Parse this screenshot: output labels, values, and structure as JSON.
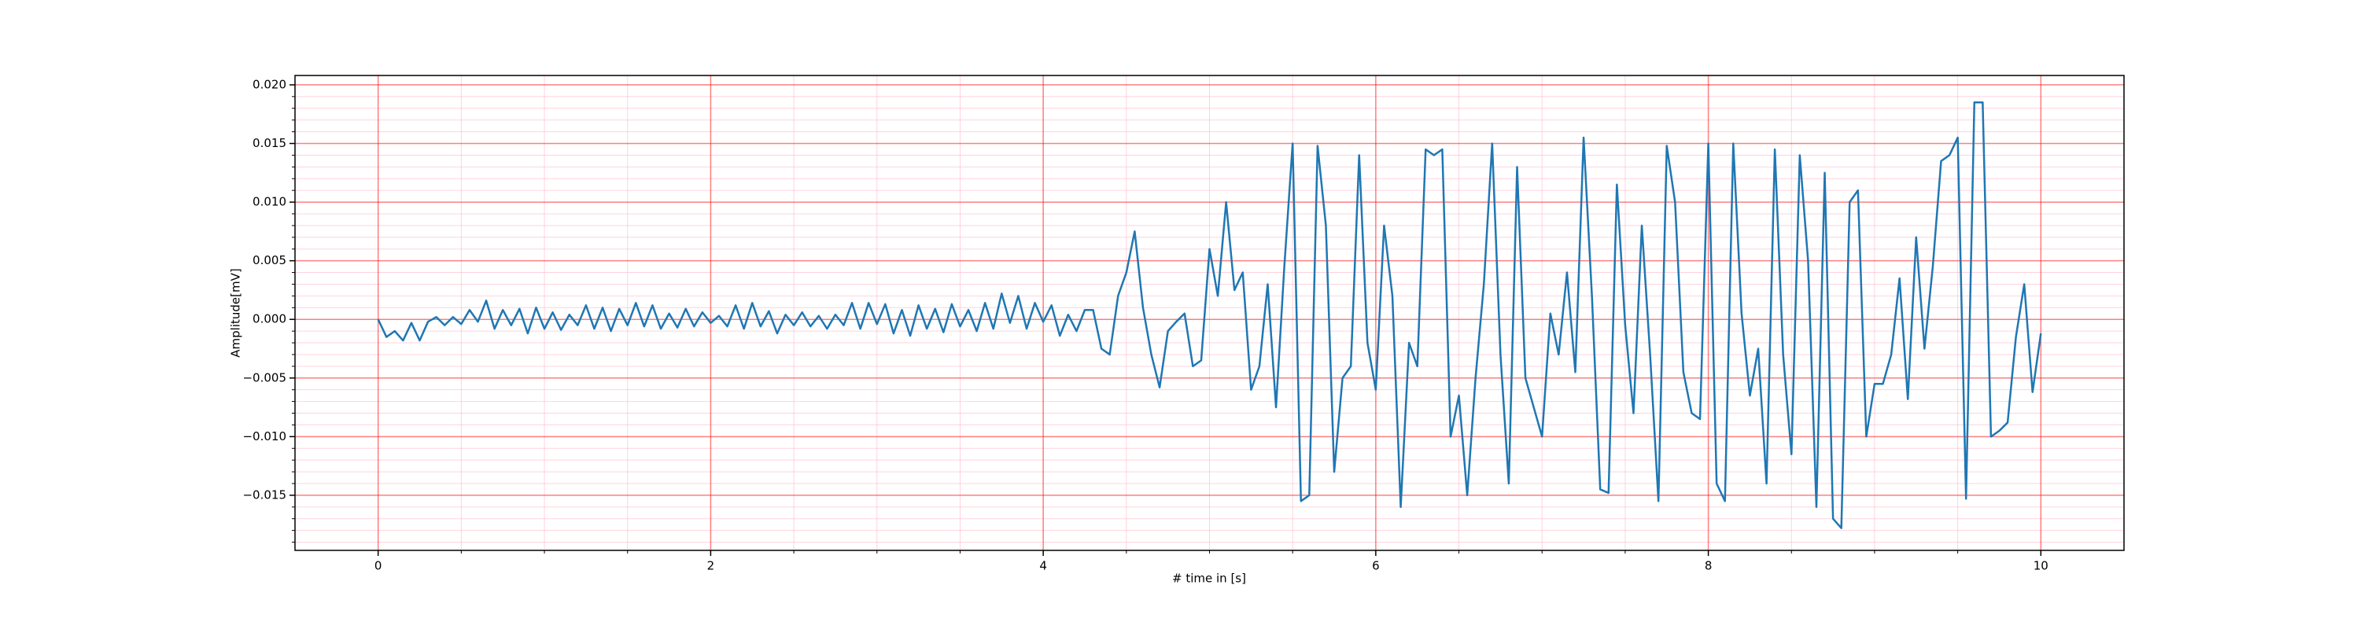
{
  "chart_data": {
    "type": "line",
    "xlabel": "# time in [s]",
    "ylabel": "Amplitude[mV]",
    "color": "#1f77b4",
    "grid": true,
    "major_grid_color": "#ff0000",
    "minor_grid_color": "#ffb6c8",
    "xlim": [
      -0.5,
      10.5
    ],
    "ylim": [
      -0.0197,
      0.0208
    ],
    "xticks": [
      0,
      2,
      4,
      6,
      8,
      10
    ],
    "minor_xticks": [
      0.5,
      1,
      1.5,
      2.5,
      3,
      3.5,
      4.5,
      5,
      5.5,
      6.5,
      7,
      7.5,
      8.5,
      9,
      9.5
    ],
    "yticks": [
      {
        "value": -0.015,
        "label": "−0.015"
      },
      {
        "value": -0.01,
        "label": "−0.010"
      },
      {
        "value": -0.005,
        "label": "−0.005"
      },
      {
        "value": 0,
        "label": "0.000"
      },
      {
        "value": 0.005,
        "label": "0.005"
      },
      {
        "value": 0.01,
        "label": "0.010"
      },
      {
        "value": 0.015,
        "label": "0.015"
      },
      {
        "value": 0.02,
        "label": "0.020"
      }
    ],
    "minor_yticks": [
      -0.019,
      -0.018,
      -0.017,
      -0.016,
      -0.014,
      -0.013,
      -0.012,
      -0.011,
      -0.009,
      -0.008,
      -0.007,
      -0.006,
      -0.004,
      -0.003,
      -0.002,
      -0.001,
      0.001,
      0.002,
      0.003,
      0.004,
      0.006,
      0.007,
      0.008,
      0.009,
      0.011,
      0.012,
      0.013,
      0.014,
      0.016,
      0.017,
      0.018,
      0.019
    ],
    "x": [
      0,
      0.05,
      0.1,
      0.15,
      0.2,
      0.25,
      0.3,
      0.35,
      0.4,
      0.45,
      0.5,
      0.55,
      0.6,
      0.65,
      0.7,
      0.75,
      0.8,
      0.85,
      0.9,
      0.95,
      1,
      1.05,
      1.1,
      1.15,
      1.2,
      1.25,
      1.3,
      1.35,
      1.4,
      1.45,
      1.5,
      1.55,
      1.6,
      1.65,
      1.7,
      1.75,
      1.8,
      1.85,
      1.9,
      1.95,
      2,
      2.05,
      2.1,
      2.15,
      2.2,
      2.25,
      2.3,
      2.35,
      2.4,
      2.45,
      2.5,
      2.55,
      2.6,
      2.65,
      2.7,
      2.75,
      2.8,
      2.85,
      2.9,
      2.95,
      3,
      3.05,
      3.1,
      3.15,
      3.2,
      3.25,
      3.3,
      3.35,
      3.4,
      3.45,
      3.5,
      3.55,
      3.6,
      3.65,
      3.7,
      3.75,
      3.8,
      3.85,
      3.9,
      3.95,
      4,
      4.05,
      4.1,
      4.15,
      4.2,
      4.25,
      4.3,
      4.35,
      4.4,
      4.45,
      4.5,
      4.55,
      4.6,
      4.65,
      4.7,
      4.75,
      4.8,
      4.85,
      4.9,
      4.95,
      5,
      5.05,
      5.1,
      5.15,
      5.2,
      5.25,
      5.3,
      5.35,
      5.4,
      5.45,
      5.5,
      5.55,
      5.6,
      5.65,
      5.7,
      5.75,
      5.8,
      5.85,
      5.9,
      5.95,
      6,
      6.05,
      6.1,
      6.15,
      6.2,
      6.25,
      6.3,
      6.35,
      6.4,
      6.45,
      6.5,
      6.55,
      6.6,
      6.65,
      6.7,
      6.75,
      6.8,
      6.85,
      6.9,
      6.95,
      7,
      7.05,
      7.1,
      7.15,
      7.2,
      7.25,
      7.3,
      7.35,
      7.4,
      7.45,
      7.5,
      7.55,
      7.6,
      7.65,
      7.7,
      7.75,
      7.8,
      7.85,
      7.9,
      7.95,
      8,
      8.05,
      8.1,
      8.15,
      8.2,
      8.25,
      8.3,
      8.35,
      8.4,
      8.45,
      8.5,
      8.55,
      8.6,
      8.65,
      8.7,
      8.75,
      8.8,
      8.85,
      8.9,
      8.95,
      9,
      9.05,
      9.1,
      9.15,
      9.2,
      9.25,
      9.3,
      9.35,
      9.4,
      9.45,
      9.5,
      9.55,
      9.6,
      9.65,
      9.7,
      9.75,
      9.8,
      9.85,
      9.9,
      9.95,
      10
    ],
    "values": [
      0,
      -0.0015,
      -0.001,
      -0.0018,
      -0.0003,
      -0.0018,
      -0.0002,
      0.0002,
      -0.0005,
      0.0002,
      -0.0004,
      0.0008,
      -0.0002,
      0.0016,
      -0.0008,
      0.0008,
      -0.0005,
      0.0009,
      -0.0012,
      0.001,
      -0.0008,
      0.0006,
      -0.0009,
      0.0004,
      -0.0005,
      0.0012,
      -0.0008,
      0.001,
      -0.001,
      0.0009,
      -0.0005,
      0.0014,
      -0.0006,
      0.0012,
      -0.0008,
      0.0005,
      -0.0007,
      0.0009,
      -0.0006,
      0.0006,
      -0.0003,
      0.0003,
      -0.0006,
      0.0012,
      -0.0008,
      0.0014,
      -0.0006,
      0.0007,
      -0.0012,
      0.0004,
      -0.0005,
      0.0006,
      -0.0006,
      0.0003,
      -0.0008,
      0.0004,
      -0.0005,
      0.0014,
      -0.0008,
      0.0014,
      -0.0004,
      0.0013,
      -0.0012,
      0.0008,
      -0.0014,
      0.0012,
      -0.0008,
      0.0009,
      -0.0011,
      0.0013,
      -0.0006,
      0.0008,
      -0.001,
      0.0014,
      -0.0008,
      0.0022,
      -0.0003,
      0.002,
      -0.0008,
      0.0014,
      -0.0002,
      0.0012,
      -0.0014,
      0.0004,
      -0.001,
      0.0008,
      0.0008,
      -0.0025,
      -0.003,
      0.002,
      0.004,
      0.0075,
      0.001,
      -0.003,
      -0.0058,
      -0.001,
      -0.0002,
      0.0005,
      -0.004,
      -0.0035,
      0.006,
      0.002,
      0.01,
      0.0025,
      0.004,
      -0.006,
      -0.004,
      0.003,
      -0.0075,
      0.0045,
      0.015,
      -0.0155,
      -0.015,
      0.0148,
      0.008,
      -0.013,
      -0.005,
      -0.004,
      0.014,
      -0.002,
      -0.006,
      0.008,
      0.002,
      -0.016,
      -0.002,
      -0.004,
      0.0145,
      0.014,
      0.0145,
      -0.01,
      -0.0065,
      -0.015,
      -0.005,
      0.003,
      0.015,
      -0.003,
      -0.014,
      0.013,
      -0.005,
      -0.0075,
      -0.01,
      0.0005,
      -0.003,
      0.004,
      -0.0045,
      0.0155,
      0.002,
      -0.0145,
      -0.0148,
      0.0115,
      -0.0005,
      -0.008,
      0.008,
      -0.003,
      -0.0155,
      0.0148,
      0.01,
      -0.0045,
      -0.008,
      -0.0085,
      0.015,
      -0.014,
      -0.0155,
      0.015,
      0.0005,
      -0.0065,
      -0.0025,
      -0.014,
      0.0145,
      -0.003,
      -0.0115,
      0.014,
      0.005,
      -0.016,
      0.0125,
      -0.017,
      -0.0178,
      0.01,
      0.011,
      -0.01,
      -0.0055,
      -0.0055,
      -0.003,
      0.0035,
      -0.0068,
      0.007,
      -0.0025,
      0.0045,
      0.0135,
      0.014,
      0.0155,
      -0.0153,
      0.0185,
      0.0185,
      -0.01,
      -0.0095,
      -0.0088,
      -0.0015,
      0.003,
      -0.0062,
      -0.0012
    ]
  }
}
